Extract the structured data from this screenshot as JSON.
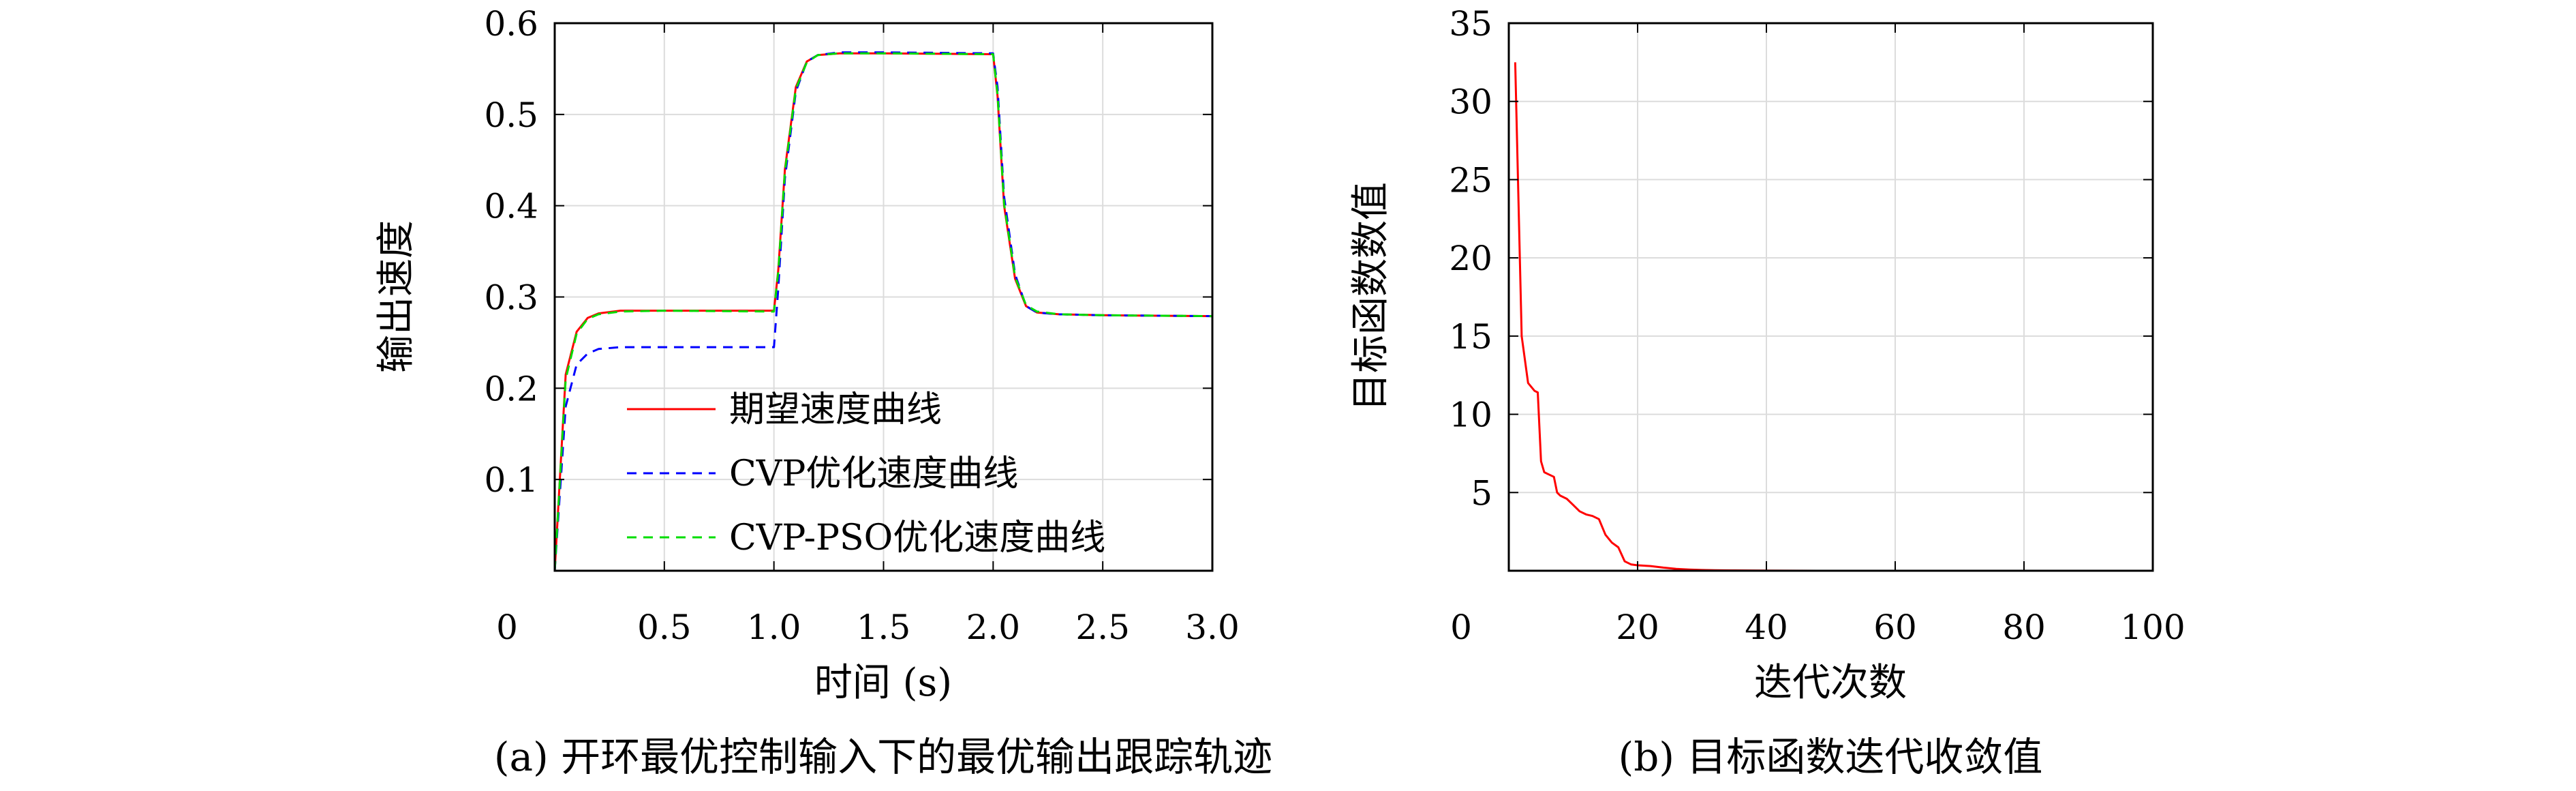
{
  "chart_data": [
    {
      "type": "line",
      "caption": "(a) 开环最优控制输入下的最优输出跟踪轨迹",
      "xlabel": "时间 (s)",
      "ylabel": "输出速度",
      "xlim": [
        0,
        3.0
      ],
      "ylim": [
        0,
        0.6
      ],
      "xticks": [
        "0",
        "0.5",
        "1.0",
        "1.5",
        "2.0",
        "2.5",
        "3.0"
      ],
      "yticks": [
        "0.1",
        "0.2",
        "0.3",
        "0.4",
        "0.5",
        "0.6"
      ],
      "grid": true,
      "legend_position": "bottom-right",
      "series": [
        {
          "name": "期望速度曲线",
          "color": "#ff0000",
          "style": "solid",
          "x": [
            0,
            0.05,
            0.1,
            0.15,
            0.2,
            0.3,
            0.5,
            1.0,
            1.02,
            1.05,
            1.1,
            1.15,
            1.2,
            1.3,
            1.5,
            2.0,
            2.02,
            2.05,
            2.1,
            2.15,
            2.2,
            2.3,
            2.5,
            3.0
          ],
          "y": [
            0,
            0.215,
            0.262,
            0.277,
            0.282,
            0.285,
            0.285,
            0.285,
            0.33,
            0.44,
            0.53,
            0.558,
            0.565,
            0.567,
            0.567,
            0.566,
            0.52,
            0.4,
            0.32,
            0.29,
            0.283,
            0.281,
            0.28,
            0.279
          ]
        },
        {
          "name": "CVP优化速度曲线",
          "color": "#0000ff",
          "style": "dashed",
          "x": [
            0,
            0.05,
            0.1,
            0.15,
            0.2,
            0.3,
            0.5,
            1.0,
            1.02,
            1.05,
            1.1,
            1.15,
            1.2,
            1.3,
            1.5,
            2.0,
            2.02,
            2.05,
            2.1,
            2.15,
            2.2,
            2.3,
            2.5,
            3.0
          ],
          "y": [
            0,
            0.18,
            0.226,
            0.238,
            0.243,
            0.245,
            0.245,
            0.245,
            0.31,
            0.43,
            0.525,
            0.558,
            0.565,
            0.568,
            0.568,
            0.567,
            0.53,
            0.41,
            0.325,
            0.29,
            0.283,
            0.281,
            0.28,
            0.279
          ]
        },
        {
          "name": "CVP-PSO优化速度曲线",
          "color": "#00dd00",
          "style": "dashed",
          "x": [
            0,
            0.05,
            0.1,
            0.15,
            0.2,
            0.3,
            0.5,
            1.0,
            1.02,
            1.05,
            1.1,
            1.15,
            1.2,
            1.3,
            1.5,
            2.0,
            2.02,
            2.05,
            2.1,
            2.15,
            2.2,
            2.3,
            2.5,
            3.0
          ],
          "y": [
            0,
            0.21,
            0.26,
            0.276,
            0.281,
            0.284,
            0.285,
            0.284,
            0.328,
            0.438,
            0.528,
            0.557,
            0.565,
            0.567,
            0.567,
            0.566,
            0.522,
            0.402,
            0.322,
            0.291,
            0.284,
            0.281,
            0.28,
            0.279
          ]
        }
      ]
    },
    {
      "type": "line",
      "caption": "(b) 目标函数迭代收敛值",
      "xlabel": "迭代次数",
      "ylabel": "目标函数数值",
      "xlim": [
        0,
        100
      ],
      "ylim": [
        0,
        35
      ],
      "xticks": [
        "0",
        "20",
        "40",
        "60",
        "80",
        "100"
      ],
      "yticks": [
        "5",
        "10",
        "15",
        "20",
        "25",
        "30",
        "35"
      ],
      "grid": true,
      "series": [
        {
          "name": "",
          "color": "#ff0000",
          "style": "solid",
          "x": [
            1,
            2,
            3,
            4,
            4.5,
            5,
            5.5,
            6,
            7,
            7.5,
            8,
            9,
            10,
            11,
            12,
            13,
            14,
            15,
            16,
            17,
            18,
            19,
            20,
            22,
            24,
            26,
            28,
            30,
            32,
            35,
            40,
            50,
            60,
            70,
            80,
            90,
            100
          ],
          "y": [
            32.5,
            15,
            12,
            11.5,
            11.4,
            7,
            6.3,
            6.2,
            6.0,
            5.0,
            4.8,
            4.6,
            4.2,
            3.8,
            3.6,
            3.5,
            3.3,
            2.3,
            1.8,
            1.5,
            0.6,
            0.4,
            0.35,
            0.3,
            0.2,
            0.12,
            0.08,
            0.05,
            0.03,
            0.02,
            0.01,
            0.0,
            0.0,
            0.0,
            0.0,
            0.0,
            0.0
          ]
        }
      ]
    }
  ]
}
